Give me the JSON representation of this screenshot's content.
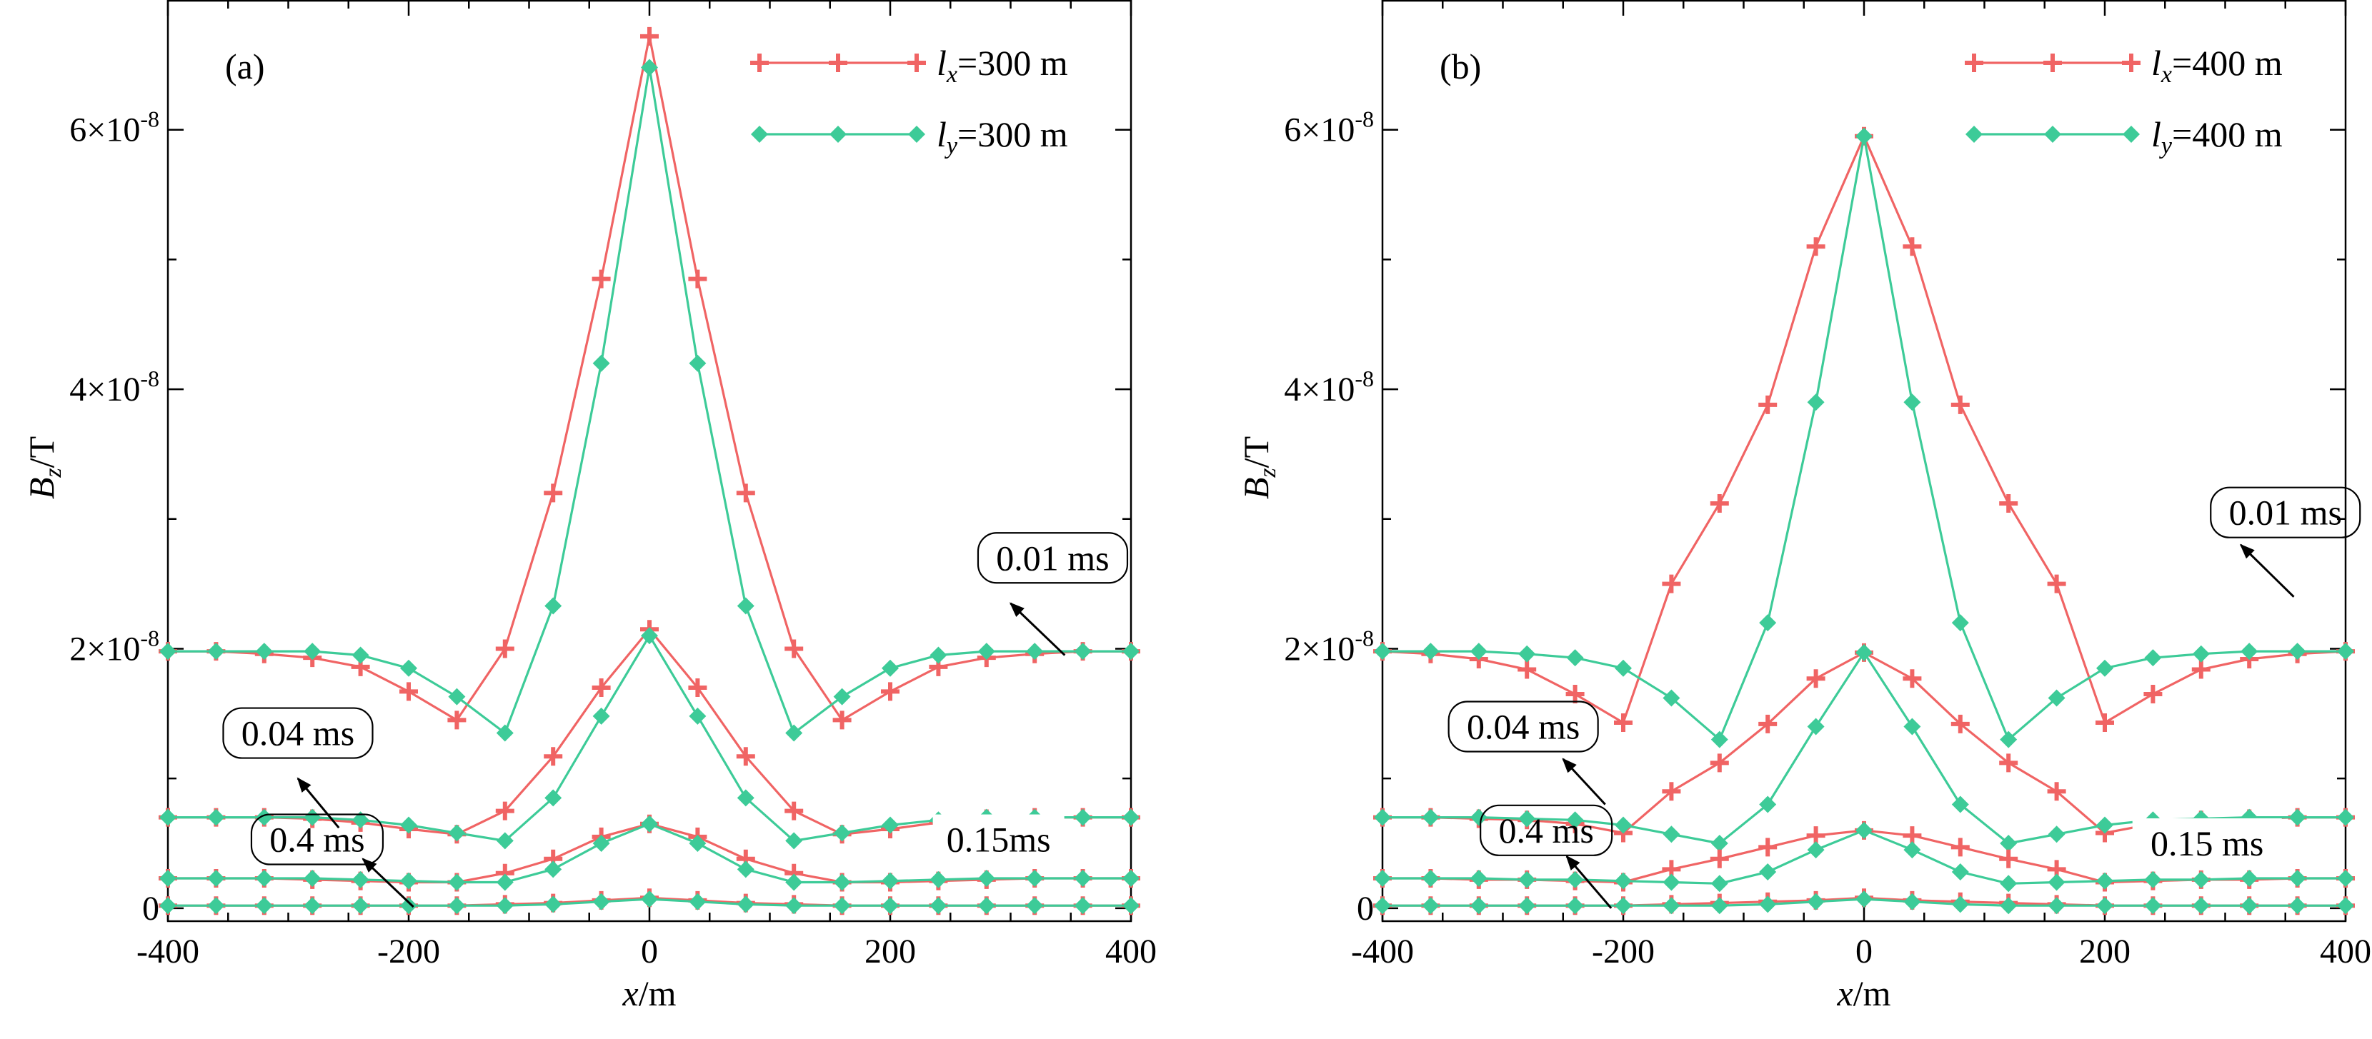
{
  "colors": {
    "x_series": "#F06464",
    "y_series": "#3DCB98",
    "axis": "#000000"
  },
  "chart_data": [
    {
      "type": "line",
      "panel_label": "(a)",
      "xlabel_var": "x",
      "xlabel_unit": "/m",
      "ylabel_var": "B",
      "ylabel_sub": "z",
      "ylabel_unit": "/T",
      "xlim": [
        -400,
        400
      ],
      "ylim": [
        -0.1,
        7.0
      ],
      "y_exponent": "-8",
      "x_ticks": [
        {
          "value": -400,
          "label": "-400"
        },
        {
          "value": -200,
          "label": "-200"
        },
        {
          "value": 0,
          "label": "0"
        },
        {
          "value": 200,
          "label": "200"
        },
        {
          "value": 400,
          "label": "400"
        }
      ],
      "y_ticks": [
        {
          "value": 0,
          "label": "0",
          "mantissa": "",
          "base": ""
        },
        {
          "value": 2,
          "label": "",
          "mantissa": "2",
          "base": "×10"
        },
        {
          "value": 4,
          "label": "",
          "mantissa": "4",
          "base": "×10"
        },
        {
          "value": 6,
          "label": "",
          "mantissa": "6",
          "base": "×10"
        }
      ],
      "legend": [
        {
          "var": "l",
          "sub": "x",
          "text": "=300 m",
          "series": "x"
        },
        {
          "var": "l",
          "sub": "y",
          "text": "=300 m",
          "series": "y"
        }
      ],
      "x": [
        -400,
        -360,
        -320,
        -280,
        -240,
        -200,
        -160,
        -120,
        -80,
        -40,
        0,
        40,
        80,
        120,
        160,
        200,
        240,
        280,
        320,
        360,
        400
      ],
      "series": [
        {
          "name": "lx=300 m, 0.01 ms",
          "kind": "x",
          "values": [
            1.98,
            1.98,
            1.96,
            1.93,
            1.86,
            1.67,
            1.45,
            2.0,
            3.2,
            4.85,
            6.72,
            4.85,
            3.2,
            2.0,
            1.45,
            1.67,
            1.86,
            1.93,
            1.96,
            1.98,
            1.98
          ]
        },
        {
          "name": "ly=300 m, 0.01 ms",
          "kind": "y",
          "values": [
            1.98,
            1.98,
            1.98,
            1.98,
            1.95,
            1.85,
            1.63,
            1.35,
            2.33,
            4.2,
            6.48,
            4.2,
            2.33,
            1.35,
            1.63,
            1.85,
            1.95,
            1.98,
            1.98,
            1.98,
            1.98
          ]
        },
        {
          "name": "lx=300 m, 0.04 ms",
          "kind": "x",
          "values": [
            0.7,
            0.7,
            0.7,
            0.69,
            0.66,
            0.61,
            0.57,
            0.75,
            1.17,
            1.7,
            2.15,
            1.7,
            1.17,
            0.75,
            0.57,
            0.61,
            0.66,
            0.69,
            0.7,
            0.7,
            0.7
          ]
        },
        {
          "name": "ly=300 m, 0.04 ms",
          "kind": "y",
          "values": [
            0.7,
            0.7,
            0.7,
            0.7,
            0.68,
            0.64,
            0.58,
            0.52,
            0.85,
            1.48,
            2.1,
            1.48,
            0.85,
            0.52,
            0.58,
            0.64,
            0.68,
            0.7,
            0.7,
            0.7,
            0.7
          ]
        },
        {
          "name": "lx=300 m, 0.15 ms",
          "kind": "x",
          "values": [
            0.23,
            0.23,
            0.23,
            0.22,
            0.21,
            0.2,
            0.2,
            0.27,
            0.38,
            0.55,
            0.65,
            0.55,
            0.38,
            0.27,
            0.2,
            0.2,
            0.21,
            0.22,
            0.23,
            0.23,
            0.23
          ]
        },
        {
          "name": "ly=300 m, 0.15 ms",
          "kind": "y",
          "values": [
            0.23,
            0.23,
            0.23,
            0.23,
            0.22,
            0.21,
            0.2,
            0.2,
            0.3,
            0.5,
            0.65,
            0.5,
            0.3,
            0.2,
            0.2,
            0.21,
            0.22,
            0.23,
            0.23,
            0.23,
            0.23
          ]
        },
        {
          "name": "lx=300 m, 0.4 ms",
          "kind": "x",
          "values": [
            0.02,
            0.02,
            0.02,
            0.02,
            0.02,
            0.02,
            0.02,
            0.03,
            0.04,
            0.06,
            0.08,
            0.06,
            0.04,
            0.03,
            0.02,
            0.02,
            0.02,
            0.02,
            0.02,
            0.02,
            0.02
          ]
        },
        {
          "name": "ly=300 m, 0.4 ms",
          "kind": "y",
          "values": [
            0.02,
            0.02,
            0.02,
            0.02,
            0.02,
            0.02,
            0.02,
            0.02,
            0.03,
            0.05,
            0.07,
            0.05,
            0.03,
            0.02,
            0.02,
            0.02,
            0.02,
            0.02,
            0.02,
            0.02,
            0.02
          ]
        }
      ],
      "annotations": [
        {
          "text": "0.01 ms",
          "box_at": [
            335,
            2.7
          ],
          "arrow_from": [
            345,
            1.95
          ],
          "arrow_to": [
            300,
            2.35
          ]
        },
        {
          "text": "0.04 ms",
          "box_at": [
            -292,
            1.35
          ],
          "arrow_from": [
            -258,
            0.62
          ],
          "arrow_to": [
            -292,
            1.0
          ]
        },
        {
          "text": "0.4 ms",
          "box_at": [
            -276,
            0.53
          ],
          "arrow_from": [
            -196,
            0.01
          ],
          "arrow_to": [
            -238,
            0.38
          ]
        },
        {
          "text": "0.15ms",
          "box_at": [
            290,
            0.53
          ],
          "arrow_from": null,
          "arrow_to": null
        }
      ]
    },
    {
      "type": "line",
      "panel_label": "(b)",
      "xlabel_var": "x",
      "xlabel_unit": "/m",
      "ylabel_var": "B",
      "ylabel_sub": "z",
      "ylabel_unit": "/T",
      "xlim": [
        -400,
        400
      ],
      "ylim": [
        -0.1,
        7.0
      ],
      "y_exponent": "-8",
      "x_ticks": [
        {
          "value": -400,
          "label": "-400"
        },
        {
          "value": -200,
          "label": "-200"
        },
        {
          "value": 0,
          "label": "0"
        },
        {
          "value": 200,
          "label": "200"
        },
        {
          "value": 400,
          "label": "400"
        }
      ],
      "y_ticks": [
        {
          "value": 0,
          "label": "0",
          "mantissa": "",
          "base": ""
        },
        {
          "value": 2,
          "label": "",
          "mantissa": "2",
          "base": "×10"
        },
        {
          "value": 4,
          "label": "",
          "mantissa": "4",
          "base": "×10"
        },
        {
          "value": 6,
          "label": "",
          "mantissa": "6",
          "base": "×10"
        }
      ],
      "legend": [
        {
          "var": "l",
          "sub": "x",
          "text": "=400 m",
          "series": "x"
        },
        {
          "var": "l",
          "sub": "y",
          "text": "=400 m",
          "series": "y"
        }
      ],
      "x": [
        -400,
        -360,
        -320,
        -280,
        -240,
        -200,
        -160,
        -120,
        -80,
        -40,
        0,
        40,
        80,
        120,
        160,
        200,
        240,
        280,
        320,
        360,
        400
      ],
      "series": [
        {
          "name": "lx=400 m, 0.01 ms",
          "kind": "x",
          "values": [
            1.98,
            1.96,
            1.92,
            1.84,
            1.65,
            1.43,
            2.5,
            3.12,
            3.88,
            5.1,
            5.95,
            5.1,
            3.88,
            3.12,
            2.5,
            1.43,
            1.65,
            1.84,
            1.92,
            1.96,
            1.98
          ]
        },
        {
          "name": "ly=400 m, 0.01 ms",
          "kind": "y",
          "values": [
            1.98,
            1.98,
            1.98,
            1.96,
            1.93,
            1.85,
            1.62,
            1.3,
            2.2,
            3.9,
            5.95,
            3.9,
            2.2,
            1.3,
            1.62,
            1.85,
            1.93,
            1.96,
            1.98,
            1.98,
            1.98
          ]
        },
        {
          "name": "lx=400 m, 0.04 ms",
          "kind": "x",
          "values": [
            0.7,
            0.7,
            0.69,
            0.68,
            0.65,
            0.58,
            0.9,
            1.12,
            1.42,
            1.77,
            1.97,
            1.77,
            1.42,
            1.12,
            0.9,
            0.58,
            0.65,
            0.68,
            0.69,
            0.7,
            0.7
          ]
        },
        {
          "name": "ly=400 m, 0.04 ms",
          "kind": "y",
          "values": [
            0.7,
            0.7,
            0.7,
            0.69,
            0.68,
            0.64,
            0.57,
            0.5,
            0.8,
            1.4,
            1.97,
            1.4,
            0.8,
            0.5,
            0.57,
            0.64,
            0.68,
            0.69,
            0.7,
            0.7,
            0.7
          ]
        },
        {
          "name": "lx=400 m, 0.15 ms",
          "kind": "x",
          "values": [
            0.23,
            0.23,
            0.22,
            0.22,
            0.21,
            0.2,
            0.3,
            0.38,
            0.47,
            0.56,
            0.6,
            0.56,
            0.47,
            0.38,
            0.3,
            0.2,
            0.21,
            0.22,
            0.22,
            0.23,
            0.23
          ]
        },
        {
          "name": "ly=400 m, 0.15 ms",
          "kind": "y",
          "values": [
            0.23,
            0.23,
            0.23,
            0.22,
            0.22,
            0.21,
            0.2,
            0.19,
            0.28,
            0.45,
            0.6,
            0.45,
            0.28,
            0.19,
            0.2,
            0.21,
            0.22,
            0.22,
            0.23,
            0.23,
            0.23
          ]
        },
        {
          "name": "lx=400 m, 0.4 ms",
          "kind": "x",
          "values": [
            0.02,
            0.02,
            0.02,
            0.02,
            0.02,
            0.02,
            0.03,
            0.04,
            0.05,
            0.06,
            0.08,
            0.06,
            0.05,
            0.04,
            0.03,
            0.02,
            0.02,
            0.02,
            0.02,
            0.02,
            0.02
          ]
        },
        {
          "name": "ly=400 m, 0.4 ms",
          "kind": "y",
          "values": [
            0.02,
            0.02,
            0.02,
            0.02,
            0.02,
            0.02,
            0.02,
            0.02,
            0.03,
            0.05,
            0.07,
            0.05,
            0.03,
            0.02,
            0.02,
            0.02,
            0.02,
            0.02,
            0.02,
            0.02,
            0.02
          ]
        }
      ],
      "annotations": [
        {
          "text": "0.01 ms",
          "box_at": [
            350,
            3.05
          ],
          "arrow_from": [
            357,
            2.4
          ],
          "arrow_to": [
            313,
            2.8
          ]
        },
        {
          "text": "0.04 ms",
          "box_at": [
            -283,
            1.4
          ],
          "arrow_from": [
            -215,
            0.8
          ],
          "arrow_to": [
            -250,
            1.15
          ]
        },
        {
          "text": "0.4 ms",
          "box_at": [
            -264,
            0.6
          ],
          "arrow_from": [
            -210,
            0.0
          ],
          "arrow_to": [
            -247,
            0.4
          ]
        },
        {
          "text": "0.15 ms",
          "box_at": [
            285,
            0.5
          ],
          "arrow_from": null,
          "arrow_to": null
        }
      ]
    }
  ]
}
